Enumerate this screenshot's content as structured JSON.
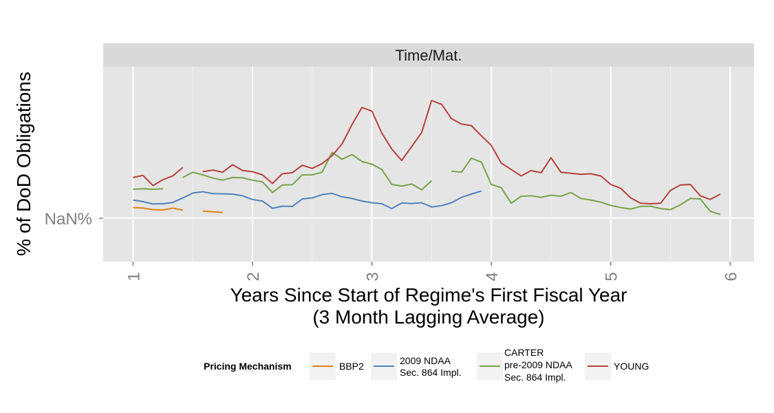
{
  "chart_data": {
    "type": "line",
    "facet_title": "Time/Mat.",
    "xlabel_lines": [
      "Years Since Start of Regime's First Fiscal Year",
      "(3 Month Lagging Average)"
    ],
    "ylabel": "% of DoD Obligations",
    "y_tick_labels": [
      "NaN%"
    ],
    "x_ticks": [
      1,
      2,
      3,
      4,
      5,
      6
    ],
    "x_tick_labels": [
      "1",
      "2",
      "3",
      "4",
      "5",
      "6"
    ],
    "xlim": [
      0.75,
      6.2
    ],
    "ylim": [
      -8.1,
      28.3
    ],
    "y_tick_values": [
      0
    ],
    "grid": true,
    "legend": {
      "title": "Pricing Mechanism",
      "position": "bottom",
      "entries": [
        {
          "label_lines": [
            "BBP2"
          ],
          "color": "#e08214"
        },
        {
          "label_lines": [
            "2009 NDAA",
            "Sec. 864 Impl."
          ],
          "color": "#4f81bd"
        },
        {
          "label_lines": [
            "CARTER",
            "pre-2009 NDAA",
            "Sec. 864 Impl."
          ],
          "color": "#77a346"
        },
        {
          "label_lines": [
            "YOUNG"
          ],
          "color": "#b5403a"
        }
      ]
    },
    "series": [
      {
        "name": "BBP2",
        "color": "#e08214",
        "segments": [
          [
            [
              1.0,
              2.0
            ],
            [
              1.083,
              1.9
            ],
            [
              1.167,
              1.6
            ],
            [
              1.25,
              1.55
            ],
            [
              1.333,
              1.9
            ],
            [
              1.417,
              1.5
            ]
          ],
          [
            [
              1.583,
              1.35
            ],
            [
              1.667,
              1.2
            ],
            [
              1.75,
              1.1
            ]
          ]
        ]
      },
      {
        "name": "2009 NDAA Sec. 864 Impl.",
        "color": "#4f81bd",
        "segments": [
          [
            [
              1.0,
              3.4
            ],
            [
              1.083,
              3.1
            ],
            [
              1.167,
              2.65
            ],
            [
              1.25,
              2.7
            ],
            [
              1.333,
              2.95
            ],
            [
              1.417,
              3.8
            ],
            [
              1.5,
              4.7
            ],
            [
              1.583,
              4.95
            ],
            [
              1.667,
              4.6
            ],
            [
              1.75,
              4.55
            ],
            [
              1.833,
              4.5
            ],
            [
              1.917,
              4.2
            ],
            [
              2.0,
              3.5
            ],
            [
              2.083,
              3.2
            ],
            [
              2.167,
              1.85
            ],
            [
              2.25,
              2.25
            ],
            [
              2.333,
              2.2
            ],
            [
              2.417,
              3.6
            ],
            [
              2.5,
              3.8
            ],
            [
              2.583,
              4.4
            ],
            [
              2.667,
              4.65
            ],
            [
              2.75,
              4.0
            ],
            [
              2.833,
              3.7
            ],
            [
              2.917,
              3.2
            ],
            [
              3.0,
              2.9
            ],
            [
              3.083,
              2.7
            ],
            [
              3.167,
              1.8
            ],
            [
              3.25,
              2.85
            ],
            [
              3.333,
              2.75
            ],
            [
              3.417,
              2.9
            ],
            [
              3.5,
              2.1
            ],
            [
              3.583,
              2.35
            ],
            [
              3.667,
              2.9
            ],
            [
              3.75,
              3.9
            ],
            [
              3.833,
              4.5
            ],
            [
              3.917,
              5.1
            ]
          ]
        ]
      },
      {
        "name": "CARTER pre-2009 NDAA Sec. 864 Impl.",
        "color": "#77a346",
        "segments": [
          [
            [
              1.0,
              5.4
            ],
            [
              1.083,
              5.5
            ],
            [
              1.167,
              5.4
            ],
            [
              1.25,
              5.5
            ]
          ],
          [
            [
              1.417,
              7.6
            ],
            [
              1.5,
              8.6
            ],
            [
              1.583,
              8.1
            ],
            [
              1.667,
              7.5
            ],
            [
              1.75,
              7.1
            ],
            [
              1.833,
              7.6
            ],
            [
              1.917,
              7.55
            ],
            [
              2.0,
              7.1
            ],
            [
              2.083,
              6.8
            ],
            [
              2.167,
              4.8
            ],
            [
              2.25,
              6.2
            ],
            [
              2.333,
              6.25
            ],
            [
              2.417,
              8.1
            ],
            [
              2.5,
              8.1
            ],
            [
              2.583,
              8.6
            ],
            [
              2.667,
              12.3
            ],
            [
              2.75,
              11.0
            ],
            [
              2.833,
              11.9
            ],
            [
              2.917,
              10.6
            ],
            [
              3.0,
              10.1
            ],
            [
              3.083,
              9.1
            ],
            [
              3.167,
              6.3
            ],
            [
              3.25,
              6.0
            ],
            [
              3.333,
              6.4
            ],
            [
              3.417,
              5.3
            ],
            [
              3.5,
              7.0
            ]
          ],
          [
            [
              3.667,
              8.8
            ],
            [
              3.75,
              8.6
            ],
            [
              3.833,
              11.2
            ],
            [
              3.917,
              10.5
            ],
            [
              4.0,
              6.3
            ],
            [
              4.083,
              5.7
            ],
            [
              4.167,
              2.8
            ],
            [
              4.25,
              4.1
            ],
            [
              4.333,
              4.2
            ],
            [
              4.417,
              3.9
            ],
            [
              4.5,
              4.3
            ],
            [
              4.583,
              4.1
            ],
            [
              4.667,
              4.8
            ],
            [
              4.75,
              3.7
            ],
            [
              4.833,
              3.4
            ],
            [
              4.917,
              3.0
            ],
            [
              5.0,
              2.4
            ],
            [
              5.083,
              2.0
            ],
            [
              5.167,
              1.7
            ],
            [
              5.25,
              2.2
            ],
            [
              5.333,
              2.25
            ],
            [
              5.417,
              1.8
            ],
            [
              5.5,
              1.6
            ],
            [
              5.583,
              2.5
            ],
            [
              5.667,
              3.7
            ],
            [
              5.75,
              3.6
            ],
            [
              5.833,
              1.3
            ],
            [
              5.917,
              0.7
            ]
          ]
        ]
      },
      {
        "name": "YOUNG",
        "color": "#b5403a",
        "segments": [
          [
            [
              1.0,
              7.6
            ],
            [
              1.083,
              8.0
            ],
            [
              1.167,
              6.1
            ],
            [
              1.25,
              7.2
            ],
            [
              1.333,
              7.9
            ],
            [
              1.417,
              9.5
            ]
          ],
          [
            [
              1.583,
              8.7
            ],
            [
              1.667,
              9.0
            ],
            [
              1.75,
              8.6
            ],
            [
              1.833,
              10.0
            ],
            [
              1.917,
              8.9
            ],
            [
              2.0,
              8.7
            ],
            [
              2.083,
              8.1
            ],
            [
              2.167,
              6.5
            ],
            [
              2.25,
              8.3
            ],
            [
              2.333,
              8.5
            ],
            [
              2.417,
              9.9
            ],
            [
              2.5,
              9.3
            ],
            [
              2.583,
              10.2
            ],
            [
              2.667,
              11.7
            ],
            [
              2.75,
              13.9
            ],
            [
              2.833,
              17.5
            ],
            [
              2.917,
              20.7
            ],
            [
              3.0,
              20.0
            ],
            [
              3.083,
              15.9
            ],
            [
              3.167,
              12.9
            ],
            [
              3.25,
              10.8
            ],
            [
              3.333,
              13.4
            ],
            [
              3.417,
              16.0
            ],
            [
              3.5,
              22.0
            ],
            [
              3.583,
              21.3
            ],
            [
              3.667,
              18.6
            ],
            [
              3.75,
              17.6
            ],
            [
              3.833,
              17.3
            ],
            [
              3.917,
              15.4
            ],
            [
              4.0,
              13.6
            ],
            [
              4.083,
              10.3
            ],
            [
              4.167,
              9.1
            ],
            [
              4.25,
              7.9
            ],
            [
              4.333,
              8.9
            ],
            [
              4.417,
              8.5
            ],
            [
              4.5,
              11.3
            ],
            [
              4.583,
              8.6
            ],
            [
              4.667,
              8.4
            ],
            [
              4.75,
              8.2
            ],
            [
              4.833,
              8.3
            ],
            [
              4.917,
              7.9
            ],
            [
              5.0,
              6.3
            ],
            [
              5.083,
              5.6
            ],
            [
              5.167,
              3.8
            ],
            [
              5.25,
              2.8
            ],
            [
              5.333,
              2.7
            ],
            [
              5.417,
              2.8
            ],
            [
              5.5,
              5.2
            ],
            [
              5.583,
              6.2
            ],
            [
              5.667,
              6.3
            ],
            [
              5.75,
              4.2
            ],
            [
              5.833,
              3.5
            ],
            [
              5.917,
              4.5
            ]
          ]
        ]
      }
    ]
  }
}
